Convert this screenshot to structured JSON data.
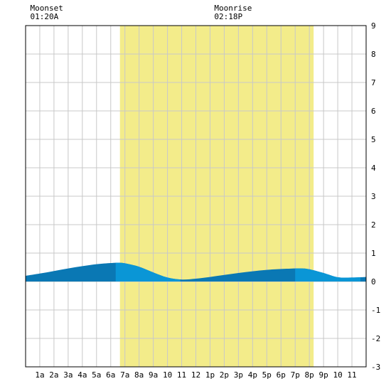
{
  "chart_data": {
    "type": "area",
    "x_unit": "hour",
    "xlim": [
      0,
      24
    ],
    "ylim": [
      -3,
      9
    ],
    "y_ticks": [
      9,
      8,
      7,
      6,
      5,
      4,
      3,
      2,
      1,
      0,
      -1,
      -2,
      -3
    ],
    "x_ticks": [
      {
        "hour": 1,
        "label": "1a"
      },
      {
        "hour": 2,
        "label": "2a"
      },
      {
        "hour": 3,
        "label": "3a"
      },
      {
        "hour": 4,
        "label": "4a"
      },
      {
        "hour": 5,
        "label": "5a"
      },
      {
        "hour": 6,
        "label": "6a"
      },
      {
        "hour": 7,
        "label": "7a"
      },
      {
        "hour": 8,
        "label": "8a"
      },
      {
        "hour": 9,
        "label": "9a"
      },
      {
        "hour": 10,
        "label": "10"
      },
      {
        "hour": 11,
        "label": "11"
      },
      {
        "hour": 12,
        "label": "12"
      },
      {
        "hour": 13,
        "label": "1p"
      },
      {
        "hour": 14,
        "label": "2p"
      },
      {
        "hour": 15,
        "label": "3p"
      },
      {
        "hour": 16,
        "label": "4p"
      },
      {
        "hour": 17,
        "label": "5p"
      },
      {
        "hour": 18,
        "label": "6p"
      },
      {
        "hour": 19,
        "label": "7p"
      },
      {
        "hour": 20,
        "label": "8p"
      },
      {
        "hour": 21,
        "label": "9p"
      },
      {
        "hour": 22,
        "label": "10"
      },
      {
        "hour": 23,
        "label": "11"
      }
    ],
    "grid": true,
    "daylight": {
      "start_hour": 6.65,
      "end_hour": 20.3,
      "color": "#f3ec8a"
    },
    "series": [
      {
        "x": [
          0,
          1,
          2,
          3,
          4,
          5,
          6,
          6.5,
          7,
          8,
          9,
          10,
          11,
          12,
          13,
          14,
          15,
          16,
          17,
          18,
          19,
          19.5,
          20,
          21,
          22,
          23,
          24
        ],
        "values": [
          0.2,
          0.28,
          0.37,
          0.46,
          0.54,
          0.61,
          0.65,
          0.66,
          0.64,
          0.52,
          0.32,
          0.14,
          0.07,
          0.1,
          0.16,
          0.23,
          0.3,
          0.36,
          0.41,
          0.44,
          0.46,
          0.46,
          0.43,
          0.3,
          0.15,
          0.14,
          0.16
        ]
      }
    ],
    "fill_dark": "#0a78b4",
    "fill_light": "#0a96d6",
    "light_bands": [
      [
        6.35,
        10.9
      ],
      [
        19,
        23.6
      ]
    ]
  },
  "moon_events": [
    {
      "label": "Moonset",
      "time": "01:20A",
      "hour": 1.33
    },
    {
      "label": "Moonrise",
      "time": "02:18P",
      "hour": 14.3
    }
  ]
}
